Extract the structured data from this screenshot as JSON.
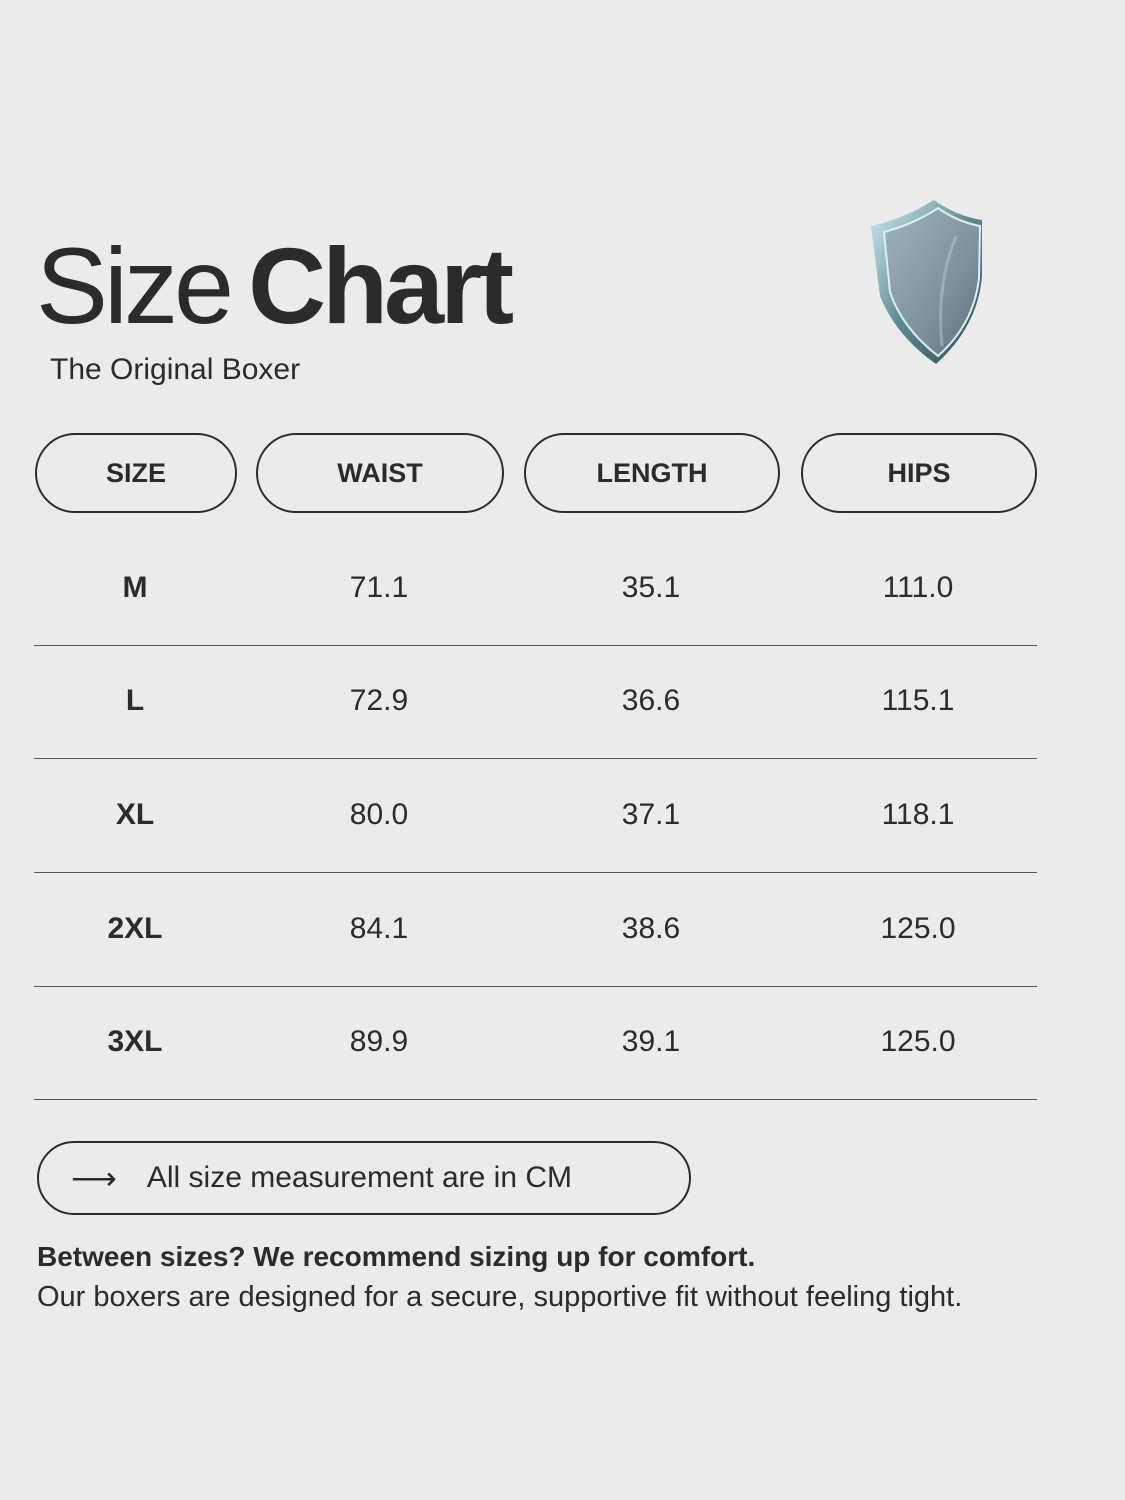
{
  "header": {
    "title_light": "Size",
    "title_bold": "Chart",
    "subtitle": "The Original Boxer",
    "icon": "shield-icon"
  },
  "table": {
    "columns": [
      "SIZE",
      "WAIST",
      "LENGTH",
      "HIPS"
    ],
    "rows": [
      [
        "M",
        "71.1",
        "35.1",
        "111.0"
      ],
      [
        "L",
        "72.9",
        "36.6",
        "115.1"
      ],
      [
        "XL",
        "80.0",
        "37.1",
        "118.1"
      ],
      [
        "2XL",
        "84.1",
        "38.6",
        "125.0"
      ],
      [
        "3XL",
        "89.9",
        "39.1",
        "125.0"
      ]
    ]
  },
  "note": {
    "arrow": "⟶",
    "text": "All size measurement are in CM"
  },
  "recommendation": {
    "headline": "Between sizes? We recommend sizing up for comfort.",
    "body": "Our boxers are designed for a secure, supportive fit without feeling tight."
  },
  "colors": {
    "background": "#ebebeb",
    "text": "#2b2b2b"
  }
}
